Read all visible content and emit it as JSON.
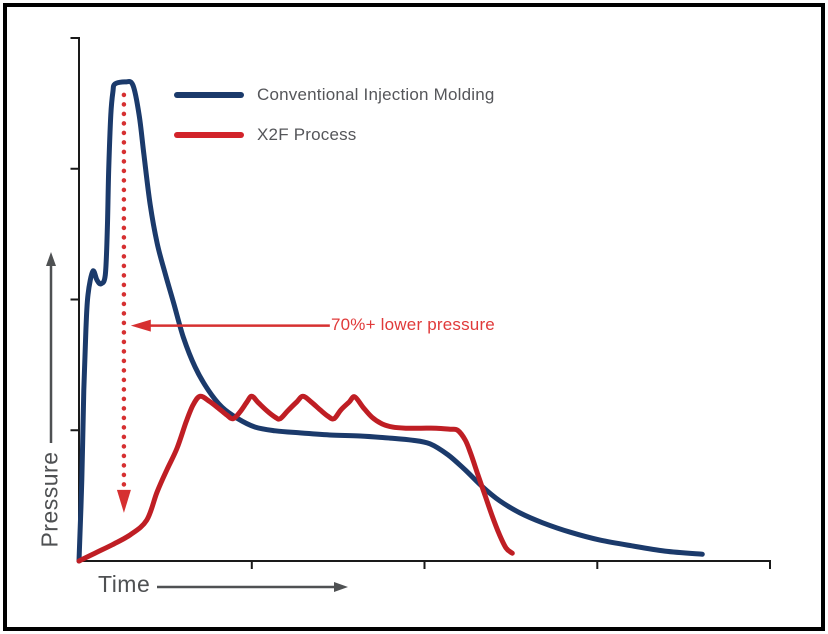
{
  "colors": {
    "axis": "#1a1a1a",
    "arrow_red": "#d63031",
    "label_gray": "#4f5153"
  },
  "legend": {
    "items": [
      {
        "label": "Conventional Injection Molding",
        "color": "#1b3a6b"
      },
      {
        "label": "X2F Process",
        "color": "#d2232a"
      }
    ]
  },
  "annotation": {
    "text": "70%+ lower pressure",
    "color": "#e03a3a"
  },
  "axes": {
    "x_label": "Time",
    "y_label": "Pressure"
  },
  "chart_data": {
    "type": "line",
    "title": "",
    "xlabel": "Time",
    "ylabel": "Pressure",
    "xlim": [
      0,
      100
    ],
    "ylim": [
      0,
      100
    ],
    "grid": false,
    "legend_position": "top-left-inside",
    "axis_ticks_unlabeled": {
      "x": [
        25,
        50,
        75,
        100
      ],
      "y": [
        25,
        50,
        75,
        100
      ]
    },
    "series": [
      {
        "name": "Conventional Injection Molding",
        "color": "#1b3a6b",
        "points": [
          [
            0,
            0
          ],
          [
            0.4,
            15.5
          ],
          [
            0.7,
            32.7
          ],
          [
            1.0,
            44.2
          ],
          [
            1.3,
            50.9
          ],
          [
            2.0,
            55.4
          ],
          [
            2.6,
            53.7
          ],
          [
            3.2,
            53.0
          ],
          [
            3.8,
            54.7
          ],
          [
            4.1,
            63.3
          ],
          [
            4.3,
            74.8
          ],
          [
            4.6,
            85.3
          ],
          [
            4.9,
            89.7
          ],
          [
            5.2,
            91.2
          ],
          [
            6.7,
            91.6
          ],
          [
            7.8,
            91.0
          ],
          [
            8.7,
            85.3
          ],
          [
            9.4,
            77.6
          ],
          [
            10.3,
            68.1
          ],
          [
            11.3,
            60.8
          ],
          [
            12.4,
            55.3
          ],
          [
            13.7,
            49.3
          ],
          [
            15.1,
            42.8
          ],
          [
            16.8,
            37.1
          ],
          [
            18.7,
            32.7
          ],
          [
            20.7,
            29.4
          ],
          [
            23.0,
            27.2
          ],
          [
            25.5,
            25.6
          ],
          [
            28.4,
            24.9
          ],
          [
            32.0,
            24.5
          ],
          [
            36.3,
            24.1
          ],
          [
            40.7,
            23.9
          ],
          [
            45.0,
            23.5
          ],
          [
            48.2,
            23.1
          ],
          [
            50.8,
            22.4
          ],
          [
            53.4,
            20.3
          ],
          [
            55.9,
            17.4
          ],
          [
            58.3,
            14.3
          ],
          [
            60.9,
            11.5
          ],
          [
            63.8,
            9.2
          ],
          [
            67.1,
            7.3
          ],
          [
            71.1,
            5.5
          ],
          [
            75.4,
            4.0
          ],
          [
            80.0,
            2.9
          ],
          [
            84.8,
            1.9
          ],
          [
            90.2,
            1.3
          ]
        ]
      },
      {
        "name": "X2F Process",
        "color": "#bf1e24",
        "points": [
          [
            0,
            0
          ],
          [
            2.3,
            1.5
          ],
          [
            4.8,
            3.1
          ],
          [
            7.4,
            5.0
          ],
          [
            9.8,
            7.8
          ],
          [
            11.3,
            13.2
          ],
          [
            12.7,
            17.4
          ],
          [
            14.2,
            21.6
          ],
          [
            15.5,
            26.6
          ],
          [
            16.5,
            29.8
          ],
          [
            17.5,
            31.5
          ],
          [
            18.8,
            30.6
          ],
          [
            20.1,
            29.3
          ],
          [
            21.4,
            27.9
          ],
          [
            22.3,
            27.2
          ],
          [
            23.3,
            28.5
          ],
          [
            24.3,
            30.4
          ],
          [
            25.0,
            31.5
          ],
          [
            26.0,
            30.2
          ],
          [
            27.2,
            28.7
          ],
          [
            28.4,
            27.5
          ],
          [
            29.1,
            27.2
          ],
          [
            30.2,
            28.7
          ],
          [
            31.5,
            30.4
          ],
          [
            32.4,
            31.5
          ],
          [
            33.6,
            30.4
          ],
          [
            34.9,
            28.9
          ],
          [
            36.0,
            27.7
          ],
          [
            36.9,
            27.2
          ],
          [
            37.9,
            28.9
          ],
          [
            39.1,
            30.4
          ],
          [
            39.9,
            31.4
          ],
          [
            41.1,
            29.4
          ],
          [
            42.4,
            27.5
          ],
          [
            43.9,
            26.2
          ],
          [
            45.4,
            25.6
          ],
          [
            47.3,
            25.4
          ],
          [
            49.5,
            25.4
          ],
          [
            51.7,
            25.4
          ],
          [
            53.7,
            25.2
          ],
          [
            54.8,
            25.0
          ],
          [
            55.9,
            23.1
          ],
          [
            56.7,
            20.5
          ],
          [
            57.7,
            16.6
          ],
          [
            58.8,
            12.4
          ],
          [
            59.8,
            8.6
          ],
          [
            60.8,
            5.2
          ],
          [
            61.8,
            2.5
          ],
          [
            62.7,
            1.5
          ]
        ]
      }
    ],
    "annotations": [
      {
        "type": "horizontal-arrow",
        "text": "70%+ lower pressure",
        "y": 45,
        "x_from": 36.3,
        "x_tip": 7.5
      },
      {
        "type": "dotted-drop-arrow",
        "x": 6.5,
        "p_top": 89.7,
        "p_tip": 9.2
      }
    ]
  }
}
